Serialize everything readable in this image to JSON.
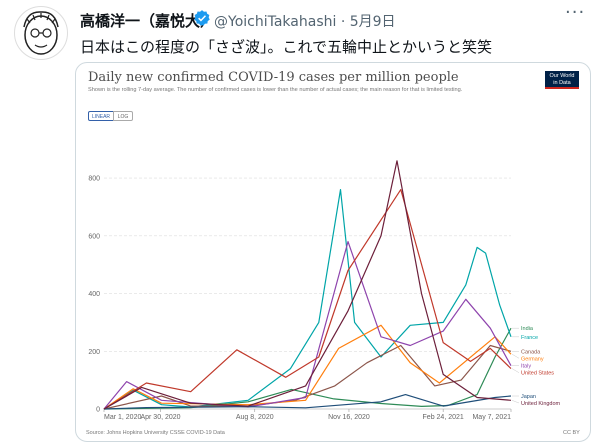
{
  "tweet": {
    "display_name": "高橋洋一（嘉悦大）",
    "handle_date": "@YoichiTakahashi · 5月9日",
    "more": "···",
    "text": "日本はこの程度の「さざ波」。これで五輪中止とかいうと笑笑"
  },
  "icons": {
    "verified": "verified-badge-icon",
    "more": "more-options-icon",
    "avatar": "caricature-avatar"
  },
  "card": {
    "title": "Daily new confirmed COVID-19 cases per million people",
    "subtitle": "Shown is the rolling 7-day average. The number of confirmed cases is lower than the number of actual cases; the main reason for that is limited testing.",
    "logo_line1": "Our World",
    "logo_line2": "in Data",
    "toggle_linear": "LINEAR",
    "toggle_log": "LOG",
    "source": "Source: Johns Hopkins University CSSE COVID-19 Data",
    "license": "CC BY"
  },
  "chart_data": {
    "type": "line",
    "title": "Daily new confirmed COVID-19 cases per million people",
    "ylim": [
      0,
      880
    ],
    "yticks": [
      0,
      200,
      400,
      600,
      800
    ],
    "x_range": [
      "2020-03-01",
      "2021-05-07"
    ],
    "xticks": [
      {
        "label": "Mar 1, 2020",
        "date": "2020-03-01"
      },
      {
        "label": "Apr 30, 2020",
        "date": "2020-04-30"
      },
      {
        "label": "Aug 8, 2020",
        "date": "2020-08-08"
      },
      {
        "label": "Nov 16, 2020",
        "date": "2020-11-16"
      },
      {
        "label": "Feb 24, 2021",
        "date": "2021-02-24"
      },
      {
        "label": "May 7, 2021",
        "date": "2021-05-07"
      }
    ],
    "grid": true,
    "legend_placement": "right-end-labels",
    "series": [
      {
        "name": "India",
        "color": "#2e8b57",
        "points": [
          [
            "2020-03-01",
            0
          ],
          [
            "2020-06-01",
            5
          ],
          [
            "2020-08-01",
            25
          ],
          [
            "2020-09-16",
            68
          ],
          [
            "2020-10-31",
            35
          ],
          [
            "2020-12-20",
            19
          ],
          [
            "2021-02-01",
            9
          ],
          [
            "2021-03-01",
            12
          ],
          [
            "2021-04-01",
            50
          ],
          [
            "2021-04-20",
            180
          ],
          [
            "2021-05-07",
            280
          ]
        ]
      },
      {
        "name": "France",
        "color": "#00a5a8",
        "points": [
          [
            "2020-03-01",
            0
          ],
          [
            "2020-03-20",
            40
          ],
          [
            "2020-04-01",
            65
          ],
          [
            "2020-05-01",
            15
          ],
          [
            "2020-06-01",
            7
          ],
          [
            "2020-08-01",
            30
          ],
          [
            "2020-09-15",
            140
          ],
          [
            "2020-10-15",
            300
          ],
          [
            "2020-11-07",
            760
          ],
          [
            "2020-11-22",
            300
          ],
          [
            "2020-12-20",
            180
          ],
          [
            "2021-01-20",
            290
          ],
          [
            "2021-02-24",
            300
          ],
          [
            "2021-03-20",
            430
          ],
          [
            "2021-04-01",
            560
          ],
          [
            "2021-04-10",
            540
          ],
          [
            "2021-04-25",
            360
          ],
          [
            "2021-05-07",
            250
          ]
        ]
      },
      {
        "name": "Canada",
        "color": "#8c564b",
        "points": [
          [
            "2020-03-01",
            0
          ],
          [
            "2020-05-01",
            45
          ],
          [
            "2020-06-01",
            10
          ],
          [
            "2020-08-01",
            10
          ],
          [
            "2020-09-20",
            30
          ],
          [
            "2020-11-01",
            80
          ],
          [
            "2020-12-05",
            160
          ],
          [
            "2021-01-10",
            220
          ],
          [
            "2021-02-15",
            80
          ],
          [
            "2021-03-15",
            100
          ],
          [
            "2021-04-15",
            220
          ],
          [
            "2021-05-07",
            200
          ]
        ]
      },
      {
        "name": "Germany",
        "color": "#ff7f0e",
        "points": [
          [
            "2020-03-01",
            0
          ],
          [
            "2020-04-01",
            70
          ],
          [
            "2020-05-01",
            20
          ],
          [
            "2020-08-01",
            15
          ],
          [
            "2020-10-01",
            30
          ],
          [
            "2020-11-05",
            210
          ],
          [
            "2020-12-20",
            290
          ],
          [
            "2021-01-20",
            160
          ],
          [
            "2021-02-20",
            90
          ],
          [
            "2021-04-20",
            250
          ],
          [
            "2021-05-07",
            190
          ]
        ]
      },
      {
        "name": "Italy",
        "color": "#8e44ad",
        "points": [
          [
            "2020-03-01",
            0
          ],
          [
            "2020-03-25",
            95
          ],
          [
            "2020-05-01",
            30
          ],
          [
            "2020-08-01",
            7
          ],
          [
            "2020-10-01",
            40
          ],
          [
            "2020-11-15",
            580
          ],
          [
            "2020-12-20",
            250
          ],
          [
            "2021-01-20",
            220
          ],
          [
            "2021-02-24",
            270
          ],
          [
            "2021-03-20",
            380
          ],
          [
            "2021-04-15",
            280
          ],
          [
            "2021-05-07",
            150
          ]
        ]
      },
      {
        "name": "United States",
        "color": "#c0392b",
        "points": [
          [
            "2020-03-01",
            0
          ],
          [
            "2020-04-15",
            90
          ],
          [
            "2020-06-01",
            60
          ],
          [
            "2020-07-20",
            205
          ],
          [
            "2020-09-10",
            110
          ],
          [
            "2020-10-15",
            180
          ],
          [
            "2020-11-15",
            480
          ],
          [
            "2021-01-10",
            760
          ],
          [
            "2021-02-24",
            230
          ],
          [
            "2021-03-25",
            165
          ],
          [
            "2021-04-15",
            210
          ],
          [
            "2021-05-07",
            140
          ]
        ]
      },
      {
        "name": "Japan",
        "color": "#1f4e79",
        "points": [
          [
            "2020-03-01",
            0
          ],
          [
            "2020-04-15",
            5
          ],
          [
            "2020-08-01",
            8
          ],
          [
            "2020-10-01",
            4
          ],
          [
            "2020-12-20",
            25
          ],
          [
            "2021-01-15",
            50
          ],
          [
            "2021-02-24",
            10
          ],
          [
            "2021-04-20",
            40
          ],
          [
            "2021-05-07",
            45
          ]
        ]
      },
      {
        "name": "United Kingdom",
        "color": "#6c1f3a",
        "points": [
          [
            "2020-03-01",
            0
          ],
          [
            "2020-04-10",
            75
          ],
          [
            "2020-06-01",
            20
          ],
          [
            "2020-08-01",
            10
          ],
          [
            "2020-10-01",
            80
          ],
          [
            "2020-11-15",
            340
          ],
          [
            "2020-12-20",
            600
          ],
          [
            "2021-01-06",
            860
          ],
          [
            "2021-02-01",
            400
          ],
          [
            "2021-02-24",
            120
          ],
          [
            "2021-04-01",
            40
          ],
          [
            "2021-05-07",
            30
          ]
        ]
      }
    ]
  }
}
